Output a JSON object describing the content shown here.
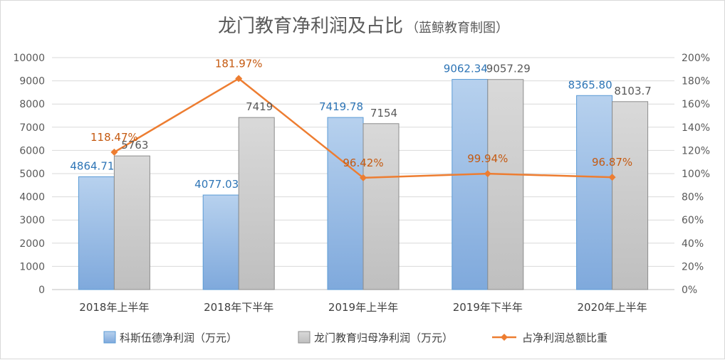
{
  "chart_data": {
    "type": "bar",
    "title": "龙门教育净利润及占比",
    "subtitle": "（蓝鲸教育制图）",
    "categories": [
      "2018年上半年",
      "2018年下半年",
      "2019年上半年",
      "2019年下半年",
      "2020年上半年"
    ],
    "series": [
      {
        "name": "科斯伍德净利润（万元）",
        "type": "bar",
        "axis": "left",
        "values": [
          4864.71,
          4077.03,
          7419.78,
          9062.34,
          8365.8
        ],
        "labels": [
          "4864.71",
          "4077.03",
          "7419.78",
          "9062.34",
          "8365.80"
        ],
        "color": "#9dc3e6"
      },
      {
        "name": "龙门教育归母净利润（万元）",
        "type": "bar",
        "axis": "left",
        "values": [
          5763,
          7419,
          7154,
          9057.29,
          8103.7
        ],
        "labels": [
          "5763",
          "7419",
          "7154",
          "9057.29",
          "8103.7"
        ],
        "color": "#c9c9c9"
      },
      {
        "name": "占净利润总额比重",
        "type": "line",
        "axis": "right",
        "values": [
          118.47,
          181.97,
          96.42,
          99.94,
          96.87
        ],
        "labels": [
          "118.47%",
          "181.97%",
          "96.42%",
          "99.94%",
          "96.87%"
        ],
        "color": "#ed7d31"
      }
    ],
    "y_left": {
      "ylim": [
        0,
        10000
      ],
      "ticks": [
        "0",
        "1000",
        "2000",
        "3000",
        "4000",
        "5000",
        "6000",
        "7000",
        "8000",
        "9000",
        "10000"
      ]
    },
    "y_right": {
      "ylim": [
        0,
        200
      ],
      "ticks": [
        "0%",
        "20%",
        "40%",
        "60%",
        "80%",
        "100%",
        "120%",
        "140%",
        "160%",
        "180%",
        "200%"
      ]
    },
    "grid": true,
    "legend": "bottom"
  }
}
